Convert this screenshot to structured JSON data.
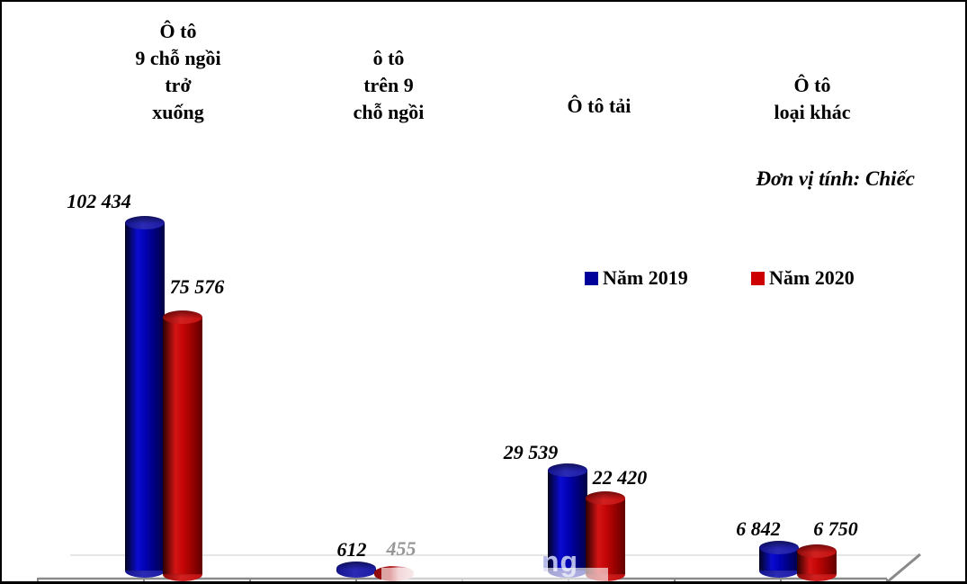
{
  "chart_data": {
    "type": "bar",
    "style": "3d-cylinder",
    "title": "",
    "unit_note": "Đơn vị tính: Chiếc",
    "categories": [
      [
        "Ô tô",
        "9 chỗ ngồi",
        "trở",
        "xuống"
      ],
      [
        "ô tô",
        "trên 9",
        "chỗ ngồi"
      ],
      [
        "Ô tô tải"
      ],
      [
        "Ô tô",
        "loại khác"
      ]
    ],
    "series": [
      {
        "name": "Năm 2019",
        "color": "#00009a",
        "values": [
          102434,
          612,
          29539,
          6842
        ],
        "labels": [
          "102 434",
          "612",
          "29 539",
          "6 842"
        ]
      },
      {
        "name": "Năm 2020",
        "color": "#cc0000",
        "values": [
          75576,
          455,
          22420,
          6750
        ],
        "labels": [
          "75 576",
          "455",
          "22 420",
          "6 750"
        ]
      }
    ],
    "ylim": [
      0,
      110000
    ],
    "grid": false,
    "legend_position": "center-right",
    "axis_color": "#8a8a8a"
  },
  "watermark": {
    "visible_letters": "ng"
  }
}
